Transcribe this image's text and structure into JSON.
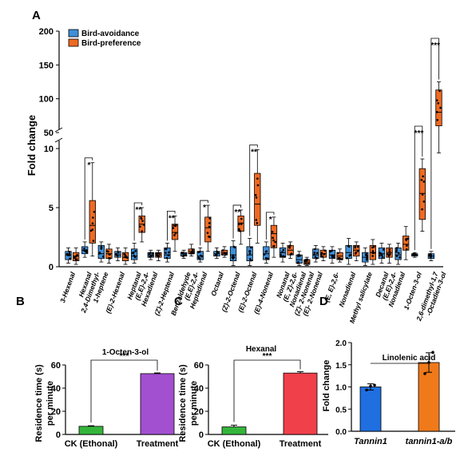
{
  "colors": {
    "avoid_fill": "#3f8fd8",
    "pref_fill": "#ef6a22",
    "b_control": "#34b53a",
    "b_treat": "#a24fd0",
    "c_control": "#34b53a",
    "c_treat": "#f0404a",
    "d_wt": "#1f6fe0",
    "d_mut": "#f07a1a"
  },
  "chart_data": [
    {
      "panel": "A",
      "type": "box",
      "ylabel": "Fold change",
      "y_axis_break": {
        "lower": [
          0,
          10
        ],
        "upper": [
          50,
          200
        ]
      },
      "lower_ticks": [
        0,
        5,
        10
      ],
      "upper_ticks": [
        50,
        100,
        150,
        200
      ],
      "legend": [
        "Bird-avoidance",
        "Bird-preference"
      ],
      "legend_position": "top-left",
      "categories": [
        "3-Hexenal",
        "Hexanal",
        "2,4-Dimethyl-1-heptene",
        "(E)-2-Hexenal",
        "Heptanal",
        "(E,E)-2,4-Hexadienal",
        "(Z)-2-Heptenal",
        "Benzaldehyde",
        "(E,E)-2,4-Heptadienal",
        "Octanal",
        "(Z)-2-Octenal",
        "(E)-2-Octenal",
        "(E)-4-Nonenal",
        "Nonanal",
        "(E, Z)-2,6-Nonadienal",
        "(Z)-2-Nonenal",
        "(E)-2-Nonenal",
        "(E, E)-2,6-Nonadienal",
        "Methyl salicylate",
        "Decanal",
        "(E,E)-2,4-Nonadienal",
        "1-Octen-3-ol",
        "2,6-dimethyl-1,7-Octadien-3-ol"
      ],
      "tick_labels": [
        [
          "3-Hexenal"
        ],
        [
          "Hexanal",
          "2,4-Dimethyl-"
        ],
        [
          "1-heptene"
        ],
        [
          "(E)-2-Hexenal"
        ],
        [
          "Heptanal",
          "(E,E)-2,4-"
        ],
        [
          "Hexadienal"
        ],
        [
          "(Z)-2-Heptenal"
        ],
        [
          "Benzaldehyde",
          "(E,E)-2,4-"
        ],
        [
          "Heptadienal"
        ],
        [
          "Octanal"
        ],
        [
          "(Z)-2-Octenal"
        ],
        [
          "(E)-2-Octenal"
        ],
        [
          "(E)-4-Nonenal"
        ],
        [
          "Nonanal",
          "(E, Z)-2,6-"
        ],
        [
          "Nonadienal",
          "(Z)- 2-Nonenal"
        ],
        [
          "(E)- 2-Nonenal"
        ],
        [
          "(E, E)-2,6-"
        ],
        [
          "Nonadienal"
        ],
        [
          "Methyl salicylate"
        ],
        [
          "Decanal",
          "(E,E)-2,4-"
        ],
        [
          "Nonadienal"
        ],
        [
          "1-Octen-3-ol"
        ],
        [
          "2,6-dimethyl-1,7",
          "-Octadien-3-ol"
        ]
      ],
      "series": [
        {
          "name": "Bird-avoidance",
          "boxes": [
            {
              "min": 0.3,
              "q1": 0.6,
              "median": 1.0,
              "q3": 1.3,
              "max": 1.6
            },
            {
              "min": 0.8,
              "q1": 1.1,
              "median": 1.4,
              "q3": 1.7,
              "max": 2.1
            },
            {
              "min": 0.4,
              "q1": 0.7,
              "median": 1.1,
              "q3": 1.8,
              "max": 2.1
            },
            {
              "min": 0.5,
              "q1": 0.8,
              "median": 1.0,
              "q3": 1.3,
              "max": 1.6
            },
            {
              "min": 0.3,
              "q1": 0.6,
              "median": 0.9,
              "q3": 1.5,
              "max": 2.0
            },
            {
              "min": 0.6,
              "q1": 0.8,
              "median": 1.0,
              "q3": 1.2,
              "max": 1.4
            },
            {
              "min": 0.4,
              "q1": 0.7,
              "median": 1.0,
              "q3": 1.6,
              "max": 2.0
            },
            {
              "min": 0.7,
              "q1": 0.9,
              "median": 1.1,
              "q3": 1.2,
              "max": 1.4
            },
            {
              "min": 0.4,
              "q1": 0.6,
              "median": 0.9,
              "q3": 1.3,
              "max": 1.6
            },
            {
              "min": 0.7,
              "q1": 0.9,
              "median": 1.1,
              "q3": 1.3,
              "max": 1.6
            },
            {
              "min": 0.1,
              "q1": 0.5,
              "median": 1.0,
              "q3": 1.7,
              "max": 2.2
            },
            {
              "min": 0.1,
              "q1": 0.5,
              "median": 1.0,
              "q3": 1.7,
              "max": 2.4
            },
            {
              "min": 0.3,
              "q1": 0.6,
              "median": 1.1,
              "q3": 1.7,
              "max": 2.1
            },
            {
              "min": 0.4,
              "q1": 0.8,
              "median": 1.2,
              "q3": 1.6,
              "max": 2.0
            },
            {
              "min": 0.1,
              "q1": 0.3,
              "median": 0.6,
              "q3": 1.0,
              "max": 1.3
            },
            {
              "min": 0.4,
              "q1": 0.7,
              "median": 1.0,
              "q3": 1.5,
              "max": 1.8
            },
            {
              "min": 0.3,
              "q1": 0.7,
              "median": 1.0,
              "q3": 1.4,
              "max": 1.7
            },
            {
              "min": 0.2,
              "q1": 0.7,
              "median": 1.2,
              "q3": 1.8,
              "max": 2.4
            },
            {
              "min": 0.1,
              "q1": 0.4,
              "median": 0.8,
              "q3": 1.2,
              "max": 1.6
            },
            {
              "min": 0.3,
              "q1": 0.7,
              "median": 1.1,
              "q3": 1.6,
              "max": 2.0
            },
            {
              "min": 0.2,
              "q1": 0.6,
              "median": 1.0,
              "q3": 1.6,
              "max": 2.0
            },
            {
              "min": 0.8,
              "q1": 0.9,
              "median": 1.0,
              "q3": 1.1,
              "max": 1.2
            },
            {
              "min": 0.5,
              "q1": 0.7,
              "median": 0.9,
              "q3": 1.1,
              "max": 1.3
            }
          ]
        },
        {
          "name": "Bird-preference",
          "boxes": [
            {
              "min": 0.2,
              "q1": 0.5,
              "median": 0.9,
              "q3": 1.2,
              "max": 1.6
            },
            {
              "min": 0.9,
              "q1": 2.0,
              "median": 3.5,
              "q3": 5.6,
              "max": 8.8
            },
            {
              "min": 0.3,
              "q1": 0.7,
              "median": 1.1,
              "q3": 1.5,
              "max": 1.9
            },
            {
              "min": 0.2,
              "q1": 0.5,
              "median": 0.8,
              "q3": 1.2,
              "max": 1.6
            },
            {
              "min": 2.1,
              "q1": 2.9,
              "median": 3.6,
              "q3": 4.3,
              "max": 5.0
            },
            {
              "min": 0.5,
              "q1": 0.8,
              "median": 1.0,
              "q3": 1.2,
              "max": 1.4
            },
            {
              "min": 1.3,
              "q1": 2.3,
              "median": 2.9,
              "q3": 3.6,
              "max": 4.3
            },
            {
              "min": 0.9,
              "q1": 1.1,
              "median": 1.3,
              "q3": 1.5,
              "max": 1.9
            },
            {
              "min": 1.3,
              "q1": 2.1,
              "median": 3.3,
              "q3": 4.2,
              "max": 5.2
            },
            {
              "min": 0.8,
              "q1": 1.0,
              "median": 1.2,
              "q3": 1.4,
              "max": 1.7
            },
            {
              "min": 1.9,
              "q1": 3.0,
              "median": 3.7,
              "q3": 4.3,
              "max": 4.8
            },
            {
              "min": 2.0,
              "q1": 3.5,
              "median": 5.3,
              "q3": 7.9,
              "max": 9.9
            },
            {
              "min": 0.8,
              "q1": 1.6,
              "median": 2.8,
              "q3": 3.5,
              "max": 4.2
            },
            {
              "min": 0.7,
              "q1": 1.0,
              "median": 1.4,
              "q3": 1.8,
              "max": 2.1
            },
            {
              "min": 0.1,
              "q1": 0.2,
              "median": 0.4,
              "q3": 0.6,
              "max": 0.8
            },
            {
              "min": 0.5,
              "q1": 0.8,
              "median": 1.1,
              "q3": 1.4,
              "max": 1.7
            },
            {
              "min": 0.4,
              "q1": 0.6,
              "median": 0.9,
              "q3": 1.2,
              "max": 1.5
            },
            {
              "min": 0.5,
              "q1": 0.9,
              "median": 1.4,
              "q3": 1.8,
              "max": 2.1
            },
            {
              "min": 0.2,
              "q1": 0.6,
              "median": 1.2,
              "q3": 1.8,
              "max": 2.3
            },
            {
              "min": 0.3,
              "q1": 0.8,
              "median": 1.2,
              "q3": 1.6,
              "max": 1.9
            },
            {
              "min": 0.6,
              "q1": 1.4,
              "median": 1.9,
              "q3": 2.6,
              "max": 3.4
            },
            {
              "min": 3.0,
              "q1": 4.0,
              "median": 6.2,
              "q3": 8.3,
              "max": 11.0
            },
            {
              "min": 20,
              "q1": 60,
              "median": 80,
              "q3": 113,
              "max": 125
            }
          ]
        }
      ],
      "significance": [
        {
          "index": 1,
          "label": "*"
        },
        {
          "index": 4,
          "label": "**"
        },
        {
          "index": 6,
          "label": "**"
        },
        {
          "index": 8,
          "label": "*"
        },
        {
          "index": 10,
          "label": "**"
        },
        {
          "index": 11,
          "label": "**"
        },
        {
          "index": 12,
          "label": "*"
        },
        {
          "index": 21,
          "label": "***"
        },
        {
          "index": 22,
          "label": "***"
        }
      ]
    },
    {
      "panel": "B",
      "type": "bar",
      "title": "1-Octen-3-ol",
      "ylabel": "Residence time (s) per minute",
      "ylim": [
        0,
        60
      ],
      "ticks": [
        0,
        20,
        40,
        60
      ],
      "categories": [
        "CK (Ethonal)",
        "Treatment"
      ],
      "values": [
        7,
        52.5
      ],
      "errors": [
        0.5,
        0.6
      ],
      "significance": "***"
    },
    {
      "panel": "C",
      "type": "bar",
      "title": "Hexanal",
      "ylabel": "Residence time (s) per minute",
      "ylim": [
        0,
        60
      ],
      "ticks": [
        0,
        20,
        40,
        60
      ],
      "categories": [
        "CK (Ethonal)",
        "Treatment"
      ],
      "values": [
        6.5,
        53
      ],
      "errors": [
        1.5,
        1.2
      ],
      "significance": "***"
    },
    {
      "panel": "D",
      "type": "bar",
      "title": "Linolenic acid",
      "ylabel": "Fold change",
      "ylim": [
        0,
        2.0
      ],
      "ticks": [
        "0.0",
        "0.5",
        "1.0",
        "1.5",
        "2.0"
      ],
      "categories": [
        "Tannin1",
        "tannin1-a/b"
      ],
      "values": [
        1.0,
        1.55
      ],
      "errors": [
        0.07,
        0.22
      ],
      "points": [
        [
          0.93,
          1.02,
          1.04
        ],
        [
          1.3,
          1.55,
          1.78
        ]
      ]
    }
  ]
}
